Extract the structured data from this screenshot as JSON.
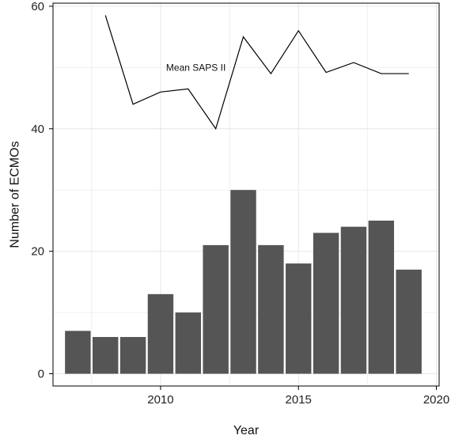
{
  "chart_data": {
    "type": "bar",
    "xlabel": "Year",
    "ylabel": "Number of ECMOs",
    "xlim": [
      2006.1,
      2020.1
    ],
    "ylim": [
      -2,
      60.5
    ],
    "x_ticks": [
      2010,
      2015,
      2020
    ],
    "y_ticks": [
      0,
      20,
      40,
      60
    ],
    "grid": true,
    "bar_color": "#555555",
    "line_color": "#000000",
    "series": [
      {
        "type": "bar",
        "x": [
          2007,
          2008,
          2009,
          2010,
          2011,
          2012,
          2013,
          2014,
          2015,
          2016,
          2017,
          2018,
          2019
        ],
        "values": [
          7,
          6,
          6,
          13,
          10,
          21,
          30,
          21,
          18,
          23,
          24,
          25,
          17
        ]
      },
      {
        "type": "line",
        "name": "Mean SAPS II",
        "x": [
          2008,
          2009,
          2010,
          2011,
          2012,
          2013,
          2014,
          2015,
          2016,
          2017,
          2018,
          2019
        ],
        "values": [
          58.5,
          44,
          46,
          46.5,
          40,
          55,
          49,
          56,
          49.2,
          50.8,
          49,
          49
        ]
      }
    ],
    "annotations": [
      {
        "text": "Mean SAPS II",
        "x": 2010.2,
        "y": 50
      }
    ]
  }
}
